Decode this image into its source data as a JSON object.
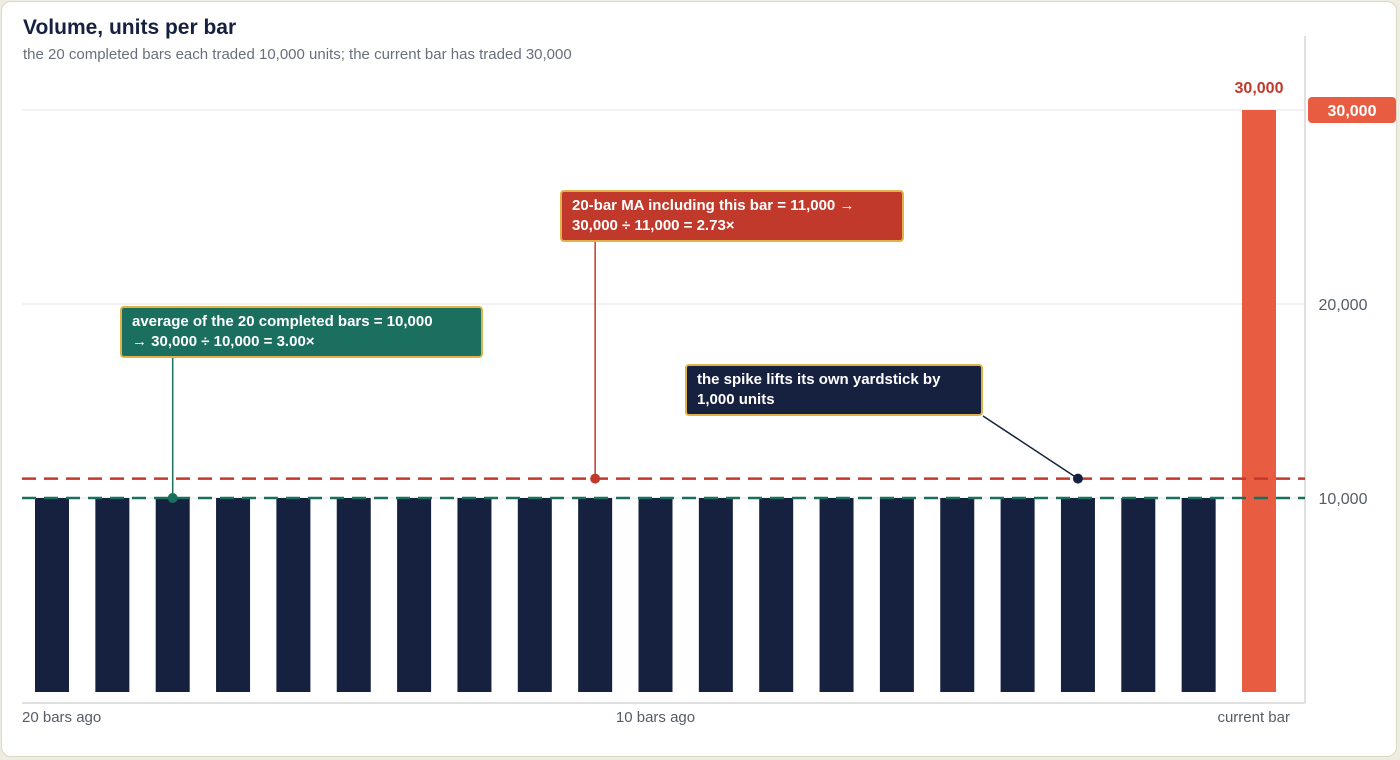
{
  "chart_data": {
    "type": "bar",
    "title": "Volume, units per bar",
    "subtitle": "the 20 completed bars each traded 10,000 units; the current bar has traded 30,000",
    "completed_bars": [
      10000,
      10000,
      10000,
      10000,
      10000,
      10000,
      10000,
      10000,
      10000,
      10000,
      10000,
      10000,
      10000,
      10000,
      10000,
      10000,
      10000,
      10000,
      10000,
      10000
    ],
    "current_bar": 30000,
    "current_bar_label": "30,000",
    "ylim": [
      0,
      30000
    ],
    "y_ticks": [
      {
        "value": 10000,
        "label": "10,000"
      },
      {
        "value": 20000,
        "label": "20,000"
      }
    ],
    "y_current_marker": {
      "value": 30000,
      "label": "30,000"
    },
    "x_labels": [
      {
        "bar_index": 0,
        "label": "20 bars ago"
      },
      {
        "bar_index": 10,
        "label": "10 bars ago"
      },
      {
        "bar_index": 20,
        "label": "current bar"
      }
    ],
    "reference_lines": [
      {
        "name": "average of completed bars",
        "value": 10000,
        "color": "#1b6f5f"
      },
      {
        "name": "20-bar MA including current bar",
        "value": 11000,
        "color": "#c0392b"
      }
    ],
    "annotations": [
      {
        "key": "avg",
        "lines": [
          "average of the 20 completed bars = 10,000",
          "→ 30,000 ÷ 10,000 = 3.00×"
        ],
        "color": "#1b6f5f",
        "anchor_bar": 2,
        "anchor_value": 10000
      },
      {
        "key": "ma",
        "lines": [
          "20-bar MA including this bar = 11,000 →",
          "30,000 ÷ 11,000 = 2.73×"
        ],
        "color": "#c0392b",
        "anchor_bar": 9,
        "anchor_value": 11000
      },
      {
        "key": "spike",
        "lines": [
          "the spike lifts its own yardstick by",
          "1,000 units"
        ],
        "color": "#16203f",
        "anchor_bar": 17,
        "anchor_value": 11000
      }
    ],
    "colors": {
      "bar": "#16203f",
      "current_bar": "#e85d42",
      "current_label": "#c0392b",
      "grid": "#e4e4e4"
    },
    "grid": true
  }
}
